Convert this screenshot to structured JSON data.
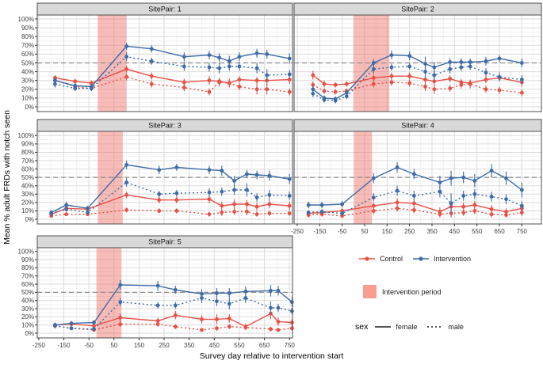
{
  "figure": {
    "x_axis_title": "Survey day relative to intervention start",
    "y_axis_title": "Mean % adult FRDs with notch seen"
  },
  "legend": {
    "series": [
      {
        "label": "Control",
        "color": "#E85046"
      },
      {
        "label": "Intervention",
        "color": "#3E6CA8"
      }
    ],
    "period": {
      "label": "Intervention period",
      "color": "#F99D8F"
    },
    "sex": {
      "title": "sex",
      "items": [
        {
          "label": "female",
          "line": "solid"
        },
        {
          "label": "male",
          "line": "dotted"
        }
      ]
    }
  },
  "chart_data": {
    "type": "line",
    "xlabel": "Survey day relative to intervention start",
    "ylabel": "Mean % adult FRDs with notch seen",
    "x_ticks": [
      -250,
      -150,
      -50,
      50,
      150,
      250,
      350,
      450,
      550,
      650,
      750
    ],
    "y_ticks": [
      0,
      10,
      20,
      30,
      40,
      50,
      60,
      70,
      80,
      90,
      100
    ],
    "y_tick_suffix": "%",
    "reference_line_pct": 50,
    "grid": true,
    "colors": {
      "control": "#E85046",
      "intervention": "#3E6CA8",
      "intervention_period_fill": "rgba(240,97,88,0.42)",
      "reference_line": "#8C8C8C",
      "grid_major": "#DBDBDB",
      "grid_minor": "#EEEEEE",
      "panel_border": "#4D4D4D",
      "strip_bg": "#D9D9D9",
      "strip_text": "#141414",
      "tick_text": "#404040"
    },
    "series_meta": [
      {
        "id": "control_male",
        "group": "Control",
        "sex": "male",
        "line": "dotted",
        "colorKey": "control"
      },
      {
        "id": "control_female",
        "group": "Control",
        "sex": "female",
        "line": "solid",
        "colorKey": "control"
      },
      {
        "id": "intervention_male",
        "group": "Intervention",
        "sex": "male",
        "line": "dotted",
        "colorKey": "intervention"
      },
      {
        "id": "intervention_female",
        "group": "Intervention",
        "sex": "female",
        "line": "solid",
        "colorKey": "intervention"
      }
    ],
    "panels": [
      {
        "title": "SitePair: 1",
        "intervention_period_days": [
          -15,
          100
        ],
        "days": [
          -185,
          -105,
          -40,
          100,
          200,
          330,
          430,
          470,
          510,
          550,
          620,
          660,
          750
        ],
        "values": {
          "intervention_female": [
            30,
            24,
            23,
            69,
            66,
            57,
            59,
            56,
            52,
            57,
            61,
            60,
            55
          ],
          "intervention_male": [
            26,
            21,
            21,
            57,
            52,
            46,
            45,
            44,
            46,
            46,
            44,
            36,
            37
          ],
          "control_female": [
            33,
            29,
            27,
            43,
            35,
            28,
            30,
            29,
            27,
            31,
            30,
            30,
            31
          ],
          "control_male": [
            30,
            23,
            21,
            34,
            26,
            22,
            17,
            28,
            27,
            23,
            20,
            20,
            17
          ]
        },
        "errors": {
          "intervention_female": [
            4,
            3,
            3,
            4,
            4,
            5,
            5,
            5,
            6,
            5,
            5,
            5,
            6
          ],
          "intervention_male": [
            4,
            3,
            3,
            5,
            4,
            5,
            5,
            6,
            5,
            5,
            6,
            7,
            5
          ],
          "control_female": [
            3,
            3,
            3,
            4,
            4,
            4,
            5,
            4,
            4,
            4,
            4,
            5,
            5
          ],
          "control_male": [
            4,
            3,
            3,
            4,
            4,
            4,
            4,
            5,
            5,
            4,
            6,
            6,
            4
          ]
        }
      },
      {
        "title": "SitePair: 2",
        "intervention_period_days": [
          0,
          160
        ],
        "days": [
          -180,
          -130,
          -80,
          -30,
          90,
          170,
          250,
          320,
          360,
          430,
          480,
          520,
          590,
          650,
          750
        ],
        "values": {
          "intervention_female": [
            20,
            10,
            9,
            16,
            50,
            59,
            58,
            49,
            45,
            51,
            51,
            51,
            52,
            55,
            50
          ],
          "intervention_male": [
            15,
            8,
            7,
            12,
            43,
            45,
            46,
            40,
            36,
            43,
            45,
            46,
            39,
            34,
            31
          ],
          "control_female": [
            36,
            26,
            25,
            26,
            33,
            35,
            35,
            31,
            29,
            32,
            28,
            27,
            31,
            33,
            28
          ],
          "control_male": [
            25,
            18,
            17,
            18,
            26,
            28,
            27,
            23,
            20,
            21,
            25,
            26,
            20,
            19,
            16
          ]
        },
        "errors": {
          "intervention_female": [
            4,
            3,
            3,
            3,
            4,
            5,
            5,
            8,
            6,
            4,
            4,
            4,
            5,
            4,
            5
          ],
          "intervention_male": [
            4,
            3,
            3,
            3,
            5,
            4,
            4,
            7,
            6,
            5,
            4,
            4,
            5,
            5,
            5
          ],
          "control_female": [
            5,
            4,
            3,
            3,
            4,
            4,
            4,
            6,
            5,
            4,
            4,
            4,
            4,
            4,
            5
          ],
          "control_male": [
            4,
            3,
            3,
            3,
            4,
            4,
            4,
            5,
            5,
            4,
            4,
            5,
            4,
            4,
            4
          ]
        }
      },
      {
        "title": "SitePair: 3",
        "intervention_period_days": [
          -15,
          85
        ],
        "days": [
          -200,
          -140,
          -55,
          100,
          230,
          300,
          430,
          480,
          530,
          580,
          620,
          670,
          750
        ],
        "values": {
          "intervention_female": [
            8,
            17,
            13,
            65,
            59,
            62,
            59,
            58,
            46,
            54,
            53,
            52,
            48
          ],
          "intervention_male": [
            7,
            12,
            8,
            44,
            30,
            31,
            32,
            33,
            35,
            35,
            26,
            29,
            28
          ],
          "control_female": [
            6,
            13,
            12,
            29,
            23,
            23,
            24,
            16,
            18,
            18,
            15,
            18,
            16
          ],
          "control_male": [
            4,
            6,
            6,
            11,
            10,
            10,
            6,
            8,
            9,
            9,
            6,
            7,
            7
          ]
        },
        "errors": {
          "intervention_female": [
            3,
            4,
            3,
            5,
            5,
            4,
            5,
            6,
            6,
            5,
            5,
            6,
            6
          ],
          "intervention_male": [
            3,
            3,
            2,
            5,
            4,
            4,
            5,
            5,
            6,
            8,
            5,
            6,
            5
          ],
          "control_female": [
            3,
            4,
            4,
            4,
            4,
            4,
            5,
            5,
            6,
            5,
            5,
            5,
            5
          ],
          "control_male": [
            2,
            2,
            2,
            3,
            3,
            3,
            3,
            4,
            4,
            4,
            3,
            3,
            3
          ]
        }
      },
      {
        "title": "SitePair: 4",
        "intervention_period_days": [
          2,
          83
        ],
        "days": [
          -200,
          -140,
          -50,
          90,
          195,
          270,
          385,
          435,
          490,
          540,
          615,
          680,
          750
        ],
        "values": {
          "intervention_female": [
            17,
            17,
            18,
            49,
            62,
            54,
            44,
            49,
            50,
            46,
            58,
            49,
            35
          ],
          "intervention_male": [
            8,
            9,
            7,
            26,
            34,
            28,
            33,
            19,
            28,
            30,
            27,
            24,
            16
          ],
          "control_female": [
            7,
            8,
            10,
            16,
            20,
            19,
            9,
            15,
            15,
            17,
            12,
            9,
            13
          ],
          "control_male": [
            5,
            6,
            4,
            10,
            13,
            11,
            6,
            7,
            8,
            10,
            6,
            5,
            8
          ]
        },
        "errors": {
          "intervention_female": [
            4,
            4,
            4,
            6,
            6,
            6,
            8,
            9,
            7,
            8,
            8,
            8,
            9
          ],
          "intervention_male": [
            3,
            3,
            3,
            5,
            6,
            6,
            7,
            12,
            6,
            6,
            6,
            6,
            6
          ],
          "control_female": [
            3,
            3,
            3,
            4,
            5,
            5,
            5,
            6,
            5,
            5,
            5,
            4,
            5
          ],
          "control_male": [
            3,
            3,
            2,
            4,
            4,
            4,
            4,
            5,
            4,
            4,
            4,
            3,
            4
          ]
        }
      },
      {
        "title": "SitePair: 5",
        "intervention_period_days": [
          -20,
          80
        ],
        "days": [
          -185,
          -120,
          -30,
          75,
          225,
          295,
          400,
          460,
          510,
          575,
          675,
          705,
          760
        ],
        "values": {
          "intervention_female": [
            10,
            12,
            13,
            59,
            58,
            53,
            48,
            49,
            49,
            51,
            52,
            52,
            38
          ],
          "intervention_male": [
            9,
            6,
            5,
            38,
            34,
            34,
            43,
            39,
            36,
            43,
            31,
            31,
            27
          ],
          "control_female": [
            10,
            11,
            9,
            19,
            15,
            22,
            17,
            17,
            18,
            8,
            24,
            14,
            13
          ],
          "control_male": [
            9,
            6,
            4,
            11,
            11,
            8,
            4,
            6,
            8,
            7,
            5,
            4,
            6
          ]
        },
        "errors": {
          "intervention_female": [
            3,
            3,
            3,
            6,
            6,
            5,
            6,
            6,
            6,
            6,
            7,
            6,
            6
          ],
          "intervention_male": [
            3,
            2,
            2,
            5,
            4,
            4,
            6,
            6,
            7,
            6,
            8,
            5,
            4
          ],
          "control_female": [
            3,
            3,
            3,
            5,
            4,
            5,
            5,
            6,
            5,
            4,
            7,
            5,
            4
          ],
          "control_male": [
            3,
            2,
            2,
            3,
            3,
            3,
            2,
            3,
            3,
            3,
            3,
            2,
            3
          ]
        }
      }
    ]
  }
}
